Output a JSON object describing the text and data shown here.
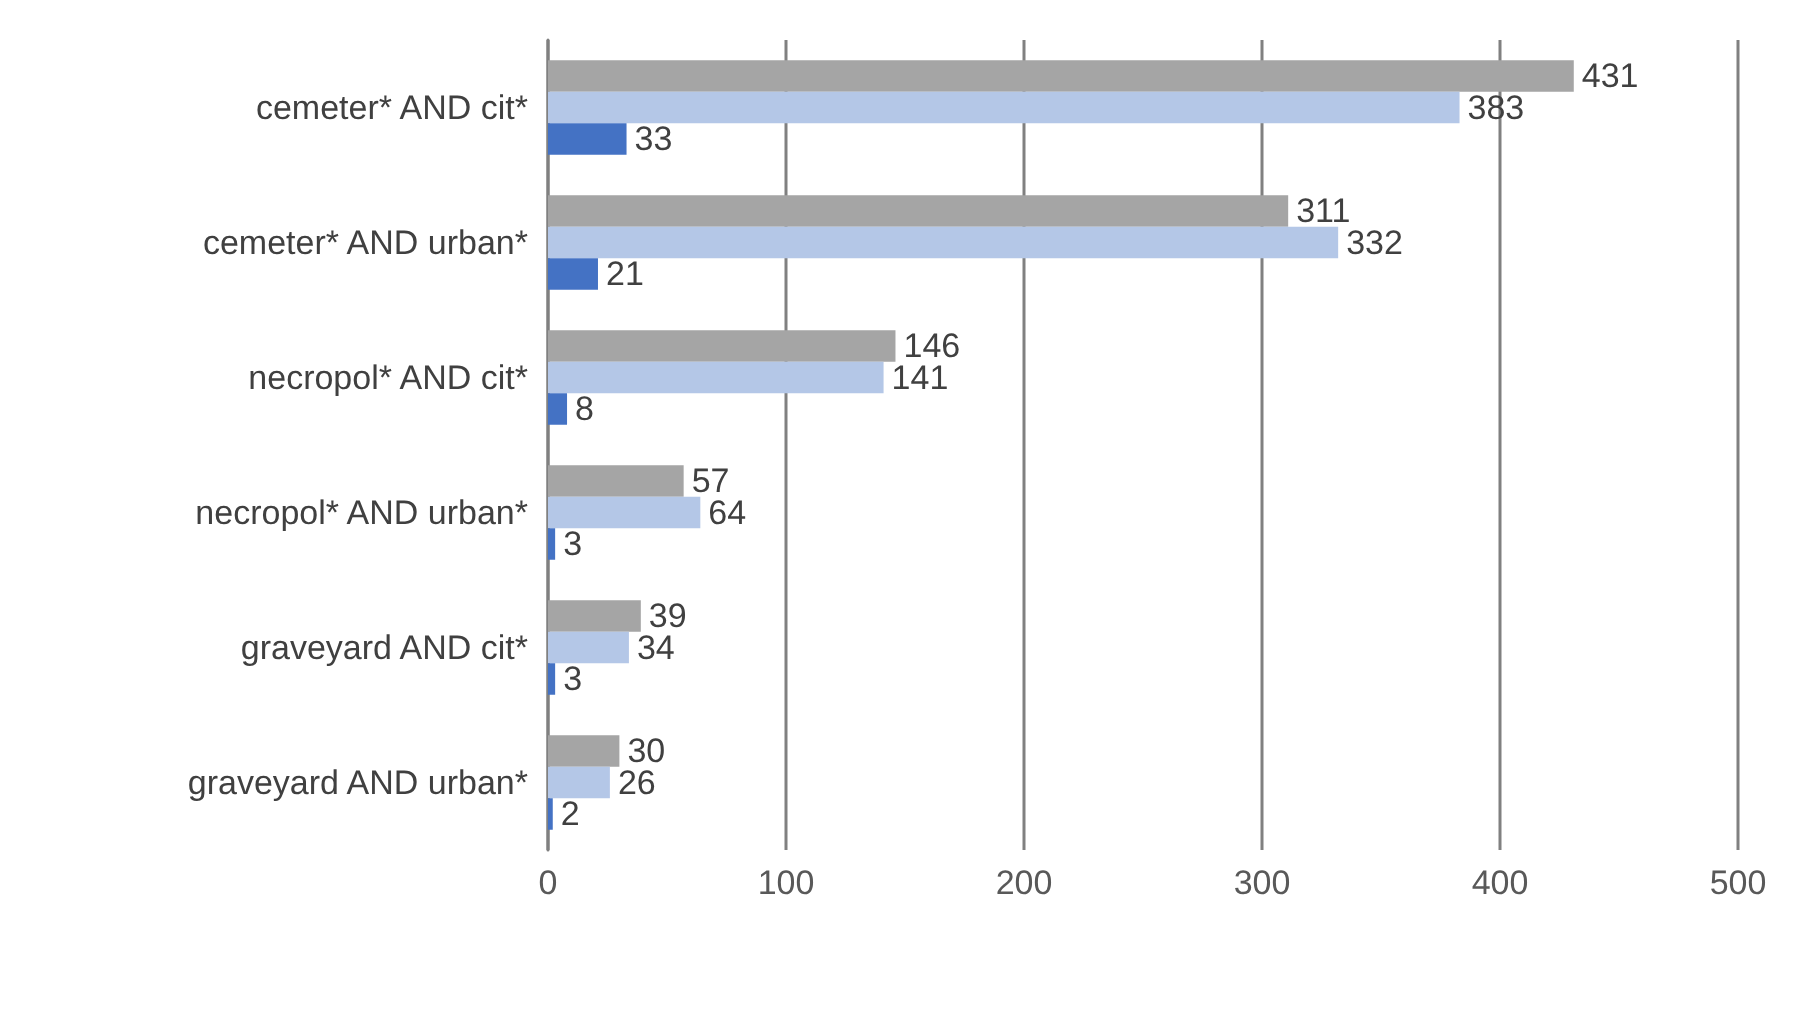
{
  "chart_data": {
    "type": "bar",
    "orientation": "horizontal",
    "categories": [
      "cemeter* AND cit*",
      "cemeter* AND urban*",
      "necropol* AND cit*",
      "necropol* AND urban*",
      "graveyard AND cit*",
      "graveyard AND urban*"
    ],
    "series": [
      {
        "color": "#a5a5a5",
        "values": [
          431,
          311,
          146,
          57,
          39,
          30
        ]
      },
      {
        "color": "#b4c7e7",
        "values": [
          383,
          332,
          141,
          64,
          34,
          26
        ]
      },
      {
        "color": "#4472c4",
        "values": [
          33,
          21,
          8,
          3,
          3,
          2
        ]
      }
    ],
    "xlim": [
      0,
      500
    ],
    "xticks": [
      0,
      100,
      200,
      300,
      400,
      500
    ],
    "grid": "x",
    "data_labels": true
  }
}
